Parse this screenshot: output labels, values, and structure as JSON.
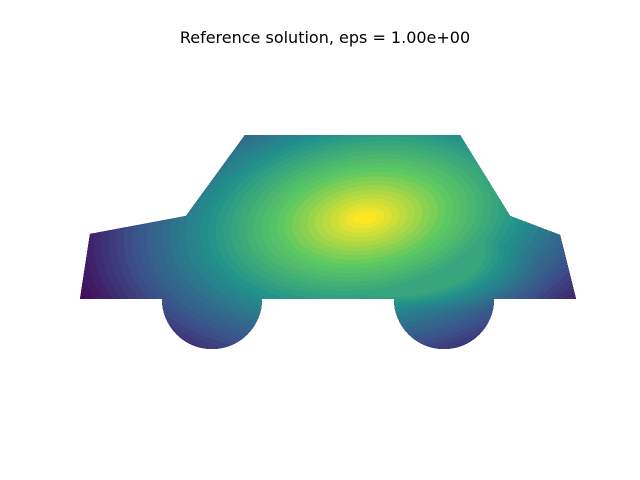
{
  "chart_data": {
    "type": "heatmap",
    "title": "Reference solution, eps = 1.00e+00",
    "xlabel": "",
    "ylabel": "",
    "axes_visible": false,
    "grid": false,
    "legend": "none",
    "colormap": "viridis",
    "colormap_stops": [
      "#440154",
      "#3b528b",
      "#21918c",
      "#5ec962",
      "#fde725"
    ],
    "value_range": [
      0,
      1
    ],
    "domain": "car silhouette (body with two semicircular wheels)",
    "peak_value": 1.0,
    "boundary_value": 0.0
  }
}
